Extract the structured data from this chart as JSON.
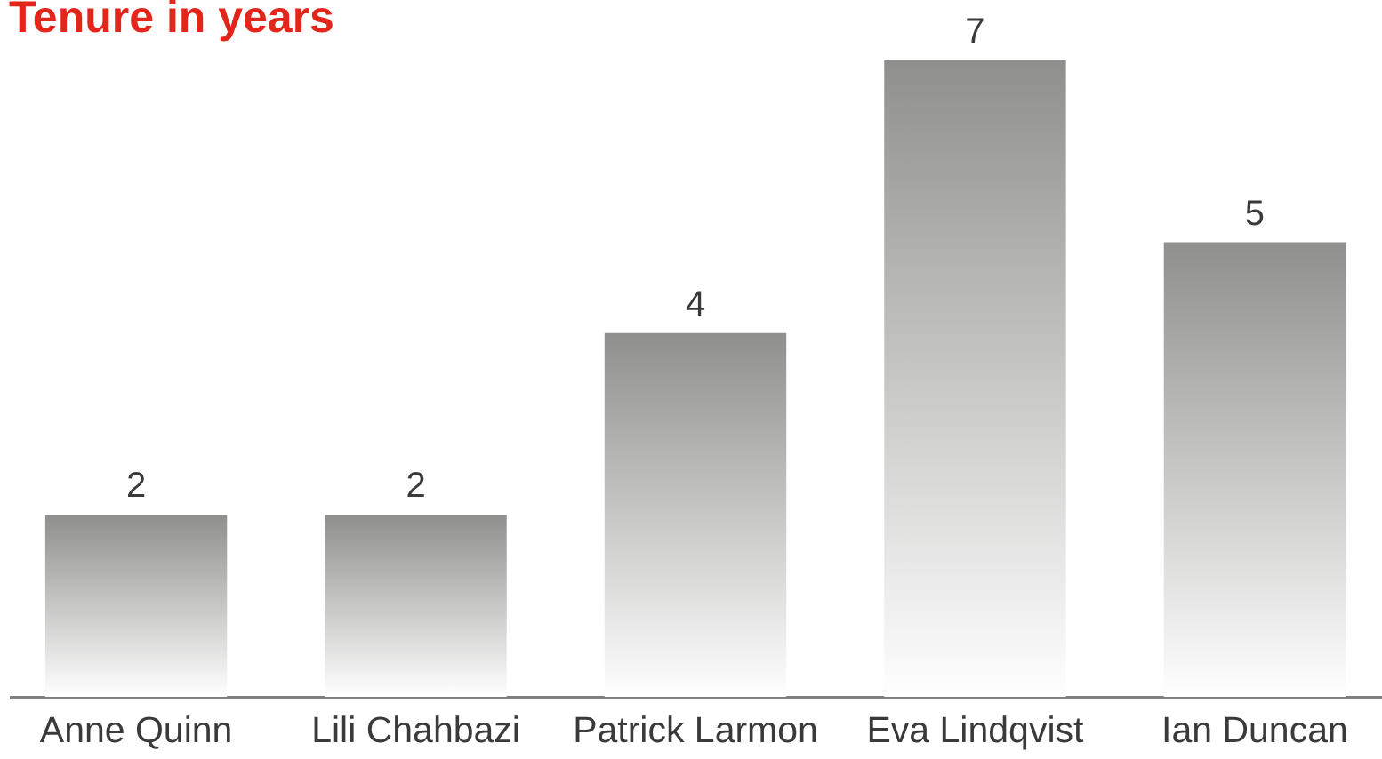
{
  "chart_data": {
    "type": "bar",
    "title": "Tenure in years",
    "categories": [
      "Anne Quinn",
      "Lili Chahbazi",
      "Patrick Larmon",
      "Eva Lindqvist",
      "Ian Duncan"
    ],
    "values": [
      2,
      2,
      4,
      7,
      5
    ],
    "color": "#8f8f8d",
    "data_labels": true,
    "tick_labels": "x"
  }
}
